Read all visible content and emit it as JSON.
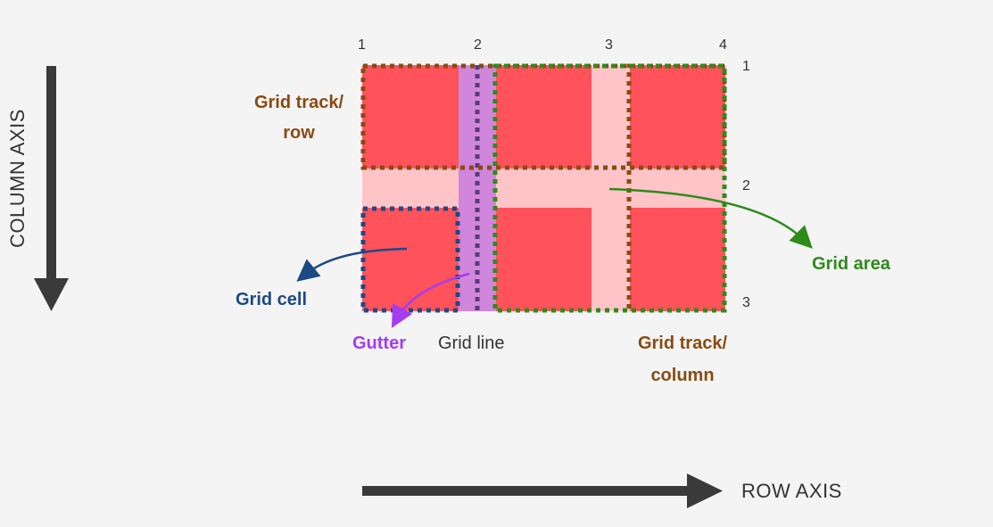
{
  "line_numbers": {
    "columns": [
      "1",
      "2",
      "3",
      "4"
    ],
    "rows": [
      "1",
      "2",
      "3"
    ]
  },
  "labels": {
    "grid_track_row": [
      "Grid track/",
      "row"
    ],
    "grid_cell": "Grid cell",
    "gutter": "Gutter",
    "grid_line": "Grid line",
    "grid_track_column": [
      "Grid track/",
      "column"
    ],
    "grid_area": "Grid area"
  },
  "axes": {
    "column_axis": "COLUMN AXIS",
    "row_axis": "ROW AXIS"
  },
  "colors": {
    "background": "#f4f4f4",
    "cell": "#ff525a",
    "gutter_bg": "#ffc4c8",
    "gutter_highlight": "#cf86db",
    "track_outline": "#8a4b12",
    "cell_outline": "#1d4a85",
    "area_outline": "#2e8b1a",
    "grid_line_outline": "#5a3a78",
    "grid_area_label": "#2e8b1a",
    "grid_cell_label": "#1d4a85",
    "gutter_label": "#a43cf0",
    "grid_line_label": "#333333",
    "track_label": "#8a4b12",
    "axis": "#3a3a3a"
  }
}
